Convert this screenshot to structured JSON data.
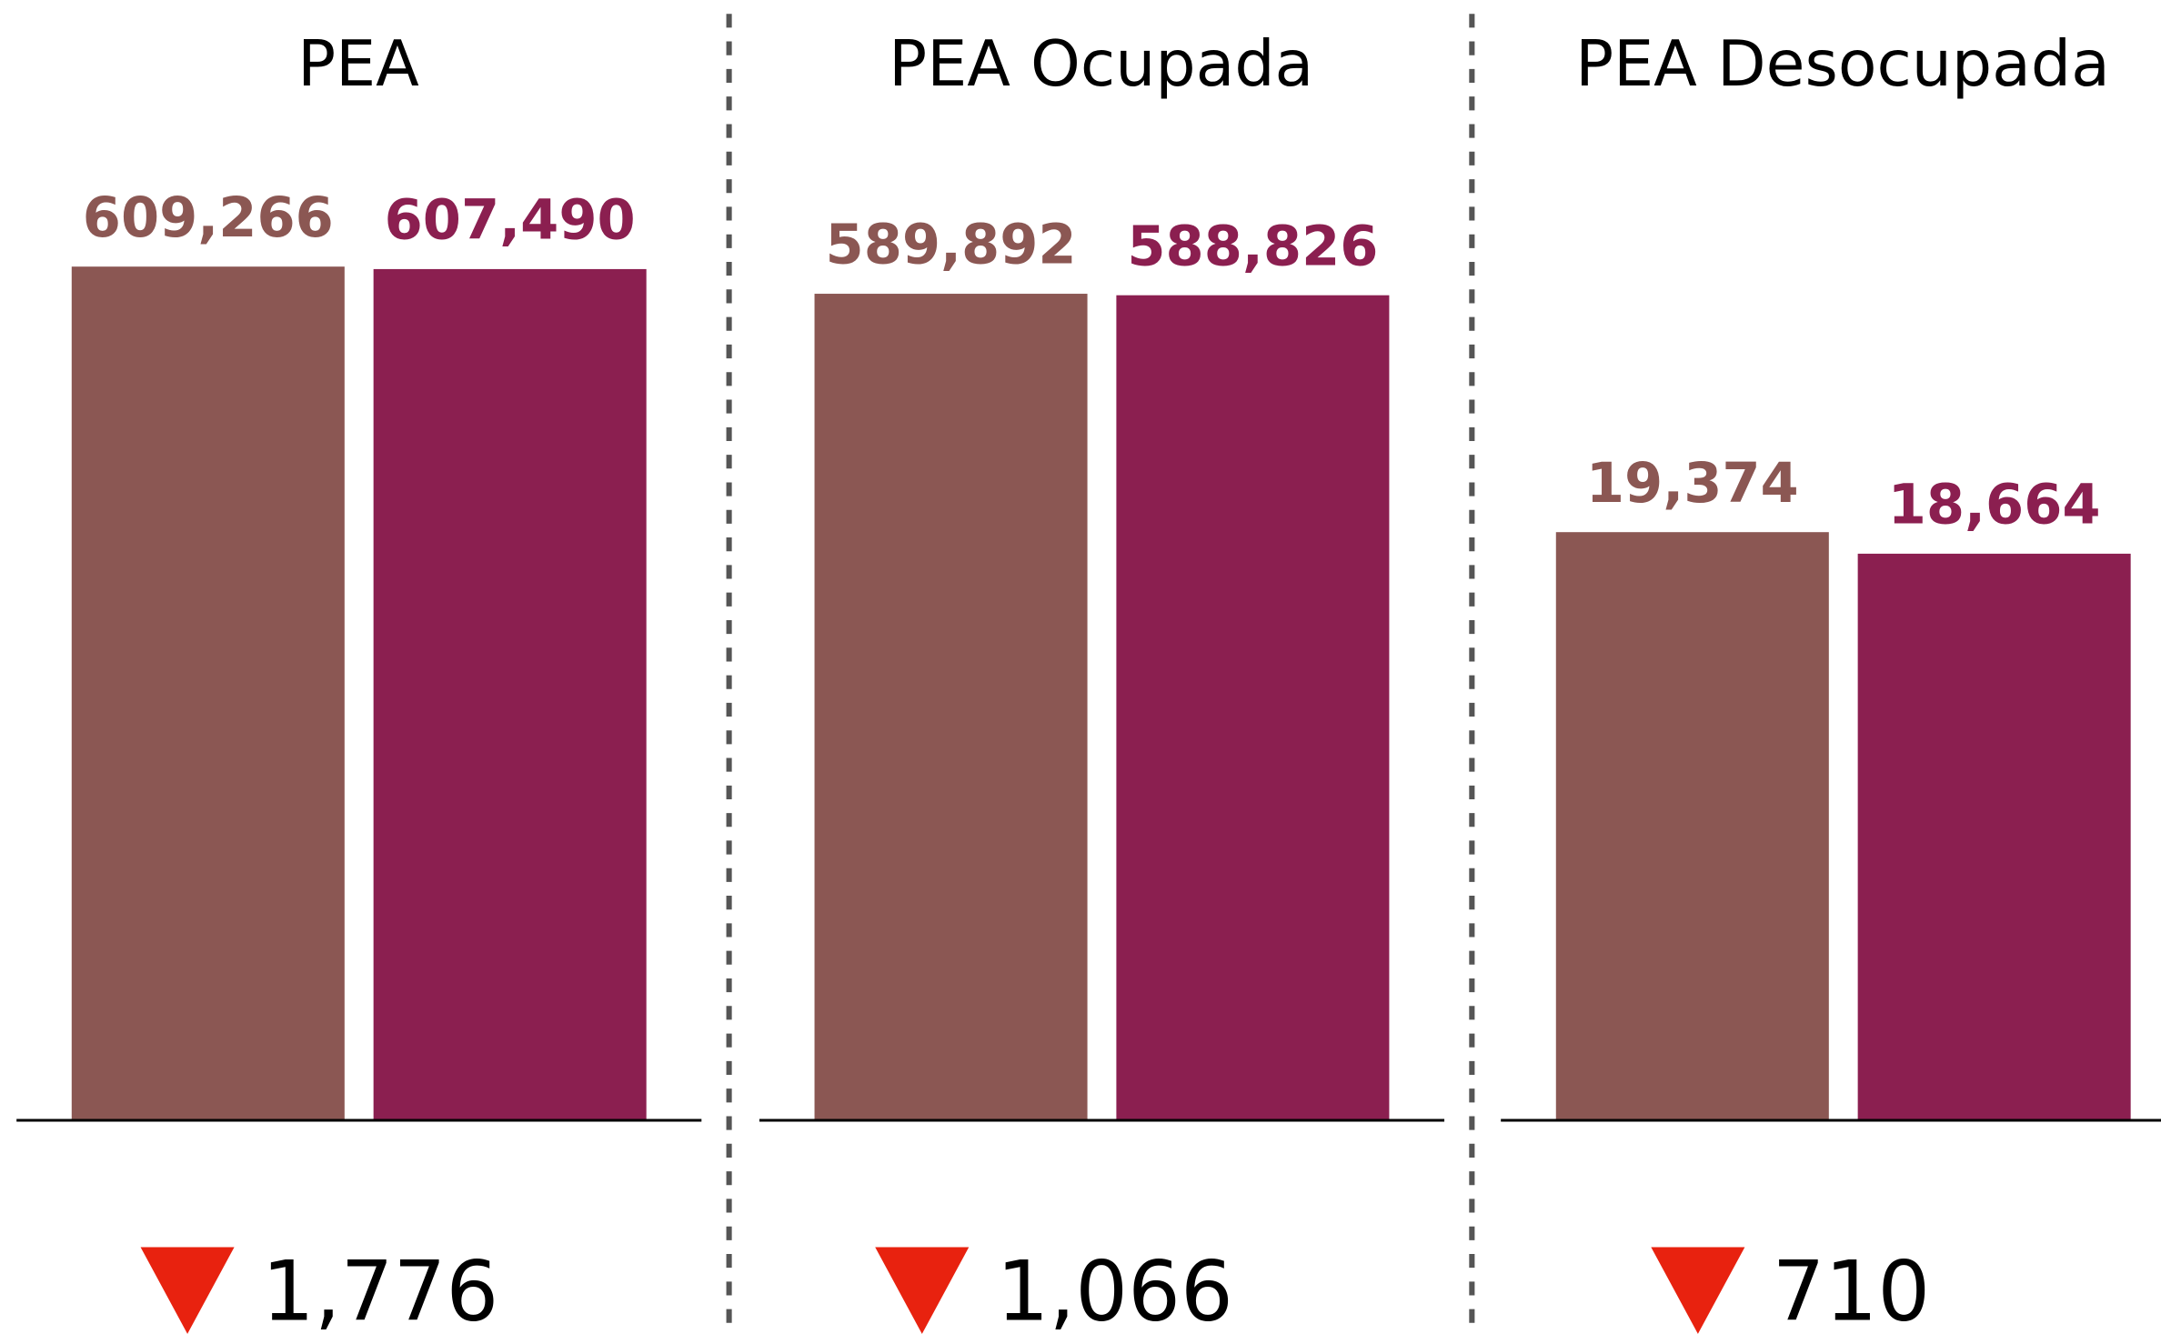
{
  "chart_data": [
    {
      "type": "bar",
      "title": "PEA",
      "values": [
        609266,
        607490
      ],
      "value_labels": [
        "609,266",
        "607,490"
      ],
      "colors": [
        "#8b5753",
        "#8b1f50"
      ],
      "ylim": [
        0,
        650000
      ],
      "annotation": "1,776"
    },
    {
      "type": "bar",
      "title": "PEA Ocupada",
      "values": [
        589892,
        588826
      ],
      "value_labels": [
        "589,892",
        "588,826"
      ],
      "colors": [
        "#8b5753",
        "#8b1f50"
      ],
      "ylim": [
        0,
        650000
      ],
      "annotation": "1,066"
    },
    {
      "type": "bar",
      "title": "PEA Desocupada",
      "values": [
        19374,
        18664
      ],
      "value_labels": [
        "19,374",
        "18,664"
      ],
      "colors": [
        "#8b5753",
        "#8b1f50"
      ],
      "ylim": [
        0,
        30000
      ],
      "annotation": "710"
    }
  ]
}
